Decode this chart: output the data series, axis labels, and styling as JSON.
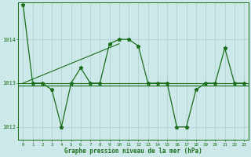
{
  "x": [
    0,
    1,
    2,
    3,
    4,
    5,
    6,
    7,
    8,
    9,
    10,
    11,
    12,
    13,
    14,
    15,
    16,
    17,
    18,
    19,
    20,
    21,
    22,
    23
  ],
  "y": [
    1014.8,
    1013.0,
    1013.0,
    1012.85,
    1012.0,
    1013.0,
    1013.35,
    1013.0,
    1013.0,
    1013.9,
    1014.0,
    1014.0,
    1013.85,
    1013.0,
    1013.0,
    1013.0,
    1012.0,
    1012.0,
    1012.85,
    1013.0,
    1013.0,
    1013.8,
    1013.0,
    1013.0
  ],
  "trend_x": [
    0,
    10
  ],
  "trend_y": [
    1013.0,
    1013.9
  ],
  "mean_y1": 1013.0,
  "mean_y2": 1012.95,
  "ylim": [
    1011.7,
    1014.85
  ],
  "yticks": [
    1012,
    1013,
    1014
  ],
  "xticks": [
    0,
    1,
    2,
    3,
    4,
    5,
    6,
    7,
    8,
    9,
    10,
    11,
    12,
    13,
    14,
    15,
    16,
    17,
    18,
    19,
    20,
    21,
    22,
    23
  ],
  "line_color": "#1a6e1a",
  "bg_color": "#cce8e8",
  "grid_color": "#aacece",
  "marker": "*",
  "xlabel": "Graphe pression niveau de la mer (hPa)"
}
